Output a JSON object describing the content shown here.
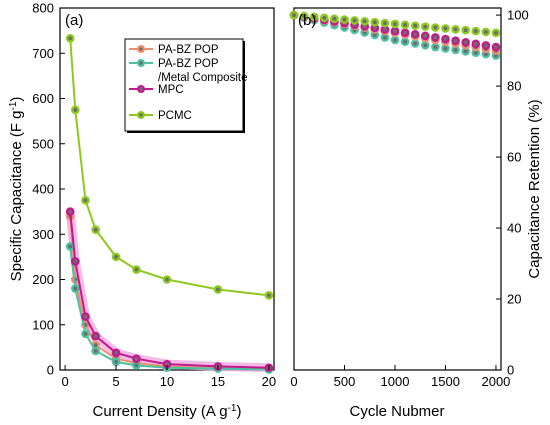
{
  "colors": {
    "pa_bz_pop": "#ee8f6e",
    "pa_bz_metal": "#4cc0a2",
    "mpc": "#c21a8c",
    "pcmc": "#8ccb1d",
    "inner_gray": "#6d6d6d",
    "band": "#f2aee4"
  },
  "chart_data": [
    {
      "type": "line",
      "panel_label": "(a)",
      "xlabel": "Current Density (A g",
      "xlabel_sup": "-1",
      "xlabel_end": ")",
      "ylabel": "Specific Capacitance (F g",
      "ylabel_sup": "-1",
      "ylabel_end": ")",
      "xlim": [
        -0.5,
        20.5
      ],
      "ylim": [
        0,
        800
      ],
      "xticks": [
        0,
        5,
        10,
        15,
        20
      ],
      "yticks": [
        0,
        100,
        200,
        300,
        400,
        500,
        600,
        700,
        800
      ],
      "legend_position": "top-right",
      "legend": [
        {
          "label": "PA-BZ POP",
          "label2": "",
          "color_key": "pa_bz_pop"
        },
        {
          "label": "PA-BZ POP",
          "label2": "/Metal Composite",
          "color_key": "pa_bz_metal"
        },
        {
          "label": "MPC",
          "label2": "",
          "color_key": "mpc"
        },
        {
          "label": "PCMC",
          "label2": "",
          "color_key": "pcmc"
        }
      ],
      "series": [
        {
          "color_key": "pa_bz_pop",
          "x": [
            0.5,
            1,
            2,
            3,
            5,
            7,
            10,
            15,
            20
          ],
          "y": [
            340,
            200,
            100,
            55,
            25,
            15,
            8,
            4,
            2
          ]
        },
        {
          "color_key": "pa_bz_metal",
          "x": [
            0.5,
            1,
            2,
            3,
            5,
            7,
            10,
            15,
            20
          ],
          "y": [
            273,
            180,
            80,
            42,
            18,
            10,
            5,
            3,
            1
          ]
        },
        {
          "color_key": "mpc",
          "x": [
            0.5,
            1,
            2,
            3,
            5,
            7,
            10,
            15,
            20
          ],
          "y": [
            350,
            240,
            118,
            75,
            38,
            25,
            13,
            8,
            5
          ]
        },
        {
          "color_key": "pcmc",
          "x": [
            0.5,
            1,
            2,
            3,
            5,
            7,
            10,
            15,
            20
          ],
          "y": [
            733,
            575,
            375,
            310,
            250,
            222,
            200,
            178,
            165
          ]
        }
      ]
    },
    {
      "type": "scatter",
      "panel_label": "(b)",
      "xlabel": "Cycle Nubmer",
      "ylabel": "Capacitance Retention (%)",
      "xlim": [
        0,
        2050
      ],
      "ylim": [
        0,
        102
      ],
      "xticks": [
        0,
        500,
        1000,
        1500,
        2000
      ],
      "yticks": [
        0,
        20,
        40,
        60,
        80,
        100
      ],
      "x": [
        0,
        100,
        200,
        300,
        400,
        500,
        600,
        700,
        800,
        900,
        1000,
        1100,
        1200,
        1300,
        1400,
        1500,
        1600,
        1700,
        1800,
        1900,
        2000
      ],
      "series": [
        {
          "color_key": "pa_bz_metal",
          "y": [
            100,
            99.3,
            98.6,
            97.9,
            97.2,
            96.5,
            95.8,
            95.1,
            94.4,
            93.7,
            93.0,
            92.5,
            92.0,
            91.5,
            91.0,
            90.6,
            90.2,
            89.8,
            89.4,
            89.0,
            88.6
          ]
        },
        {
          "color_key": "pa_bz_pop",
          "y": [
            100,
            99.5,
            99.0,
            98.5,
            98.0,
            97.5,
            97.0,
            96.5,
            96.0,
            95.5,
            95.0,
            94.5,
            94.0,
            93.5,
            93.0,
            92.5,
            92.0,
            91.5,
            91.0,
            90.5,
            90.0
          ]
        },
        {
          "color_key": "mpc",
          "y": [
            100,
            99.55,
            99.1,
            98.65,
            98.2,
            97.75,
            97.3,
            96.85,
            96.4,
            95.95,
            95.5,
            95.05,
            94.6,
            94.15,
            93.7,
            93.25,
            92.8,
            92.35,
            91.9,
            91.45,
            91.0
          ]
        },
        {
          "color_key": "pcmc",
          "y": [
            100,
            99.75,
            99.5,
            99.25,
            99.0,
            98.75,
            98.5,
            98.25,
            98.0,
            97.75,
            97.5,
            97.25,
            97.0,
            96.75,
            96.5,
            96.25,
            96.0,
            95.75,
            95.5,
            95.25,
            95.0
          ]
        }
      ]
    }
  ]
}
